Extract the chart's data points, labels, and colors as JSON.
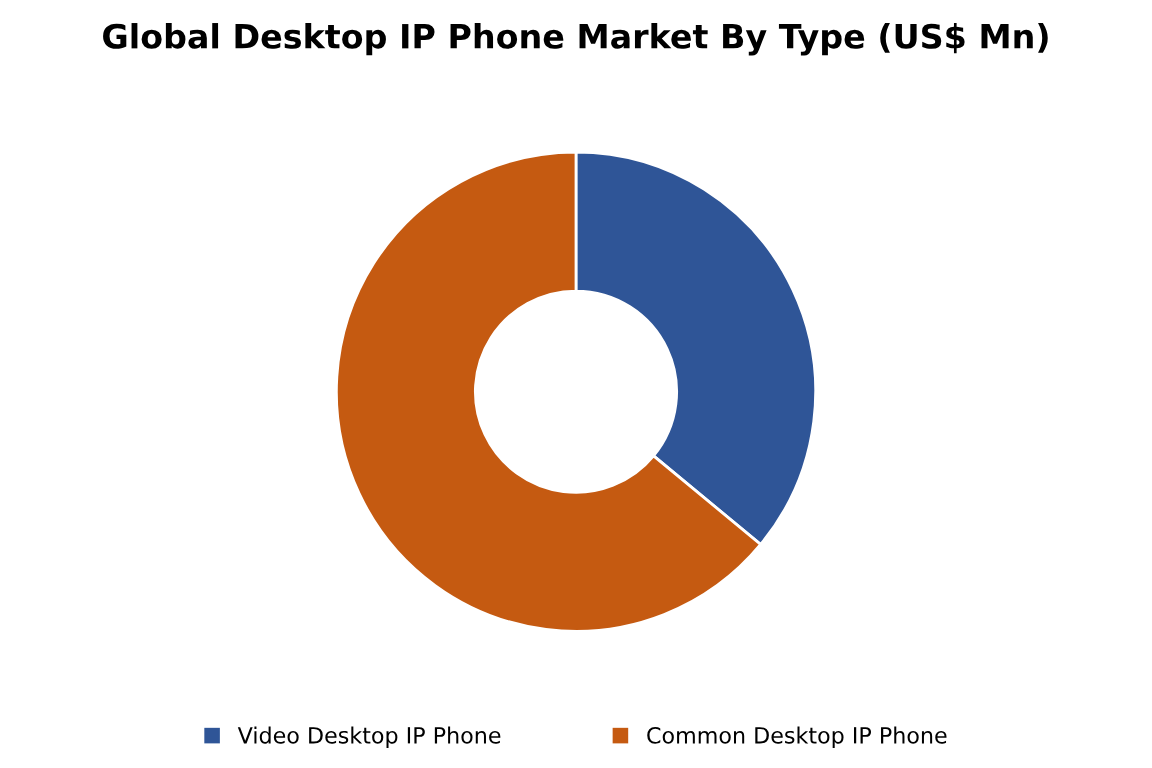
{
  "chart_data": {
    "type": "donut",
    "title": "Global Desktop IP Phone Market By Type (US$ Mn)",
    "categories": [
      "Video Desktop IP Phone",
      "Common Desktop IP Phone"
    ],
    "values": [
      36,
      64
    ],
    "colors": [
      "#2f5597",
      "#c55a11"
    ],
    "legend": "bottom"
  }
}
